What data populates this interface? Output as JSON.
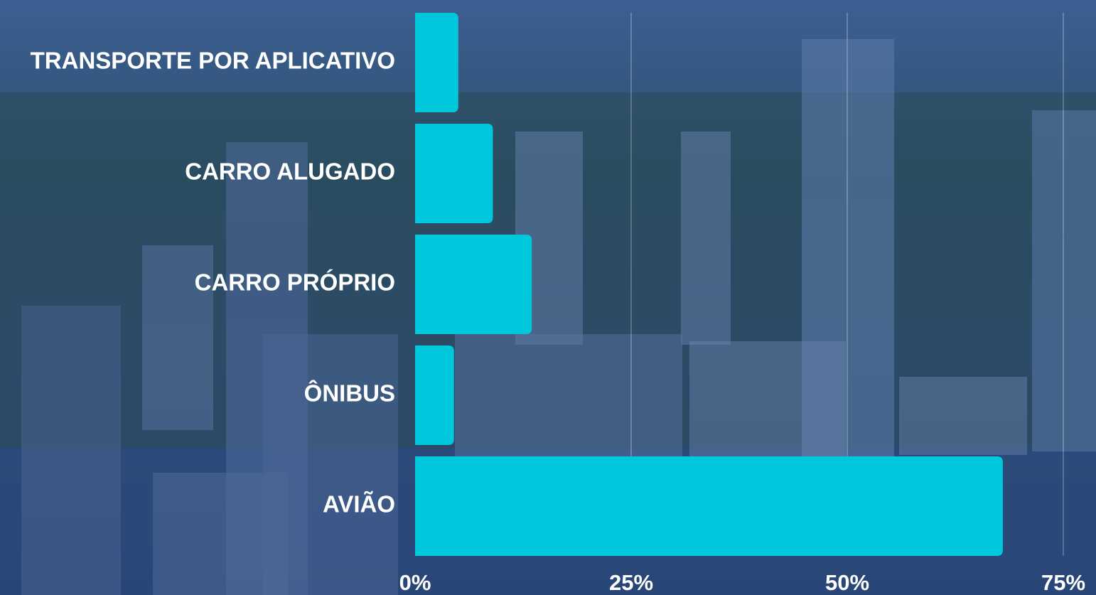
{
  "chart_data": {
    "type": "barh",
    "categories": [
      "TRANSPORTE POR APLICATIVO",
      "CARRO ALUGADO",
      "CARRO PRÓPRIO",
      "ÔNIBUS",
      "AVIÃO"
    ],
    "values": [
      5,
      9,
      13.5,
      4.5,
      68
    ],
    "color": "#00c8dc",
    "xlim": [
      0,
      75
    ],
    "xticks": [
      {
        "value": 0,
        "label": "0%"
      },
      {
        "value": 25,
        "label": "25%"
      },
      {
        "value": 50,
        "label": "50%"
      },
      {
        "value": 75,
        "label": "75%"
      }
    ],
    "grid": true
  }
}
